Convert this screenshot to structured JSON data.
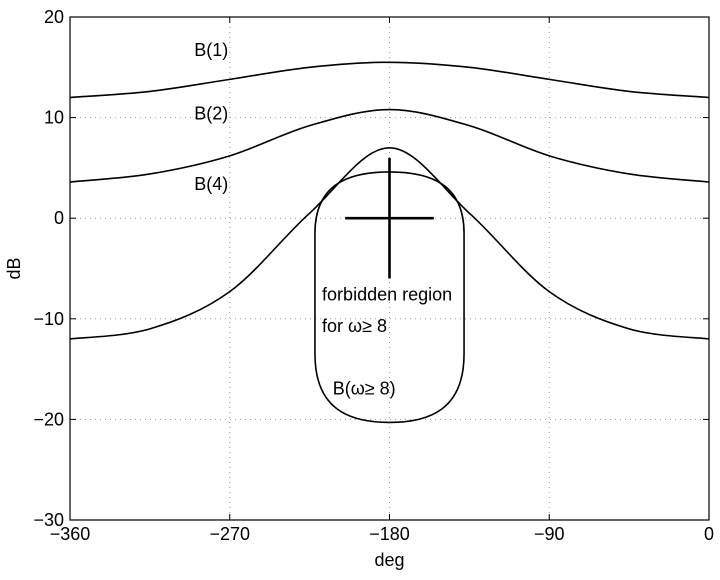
{
  "chart_data": {
    "type": "line",
    "title": "",
    "xlabel": "deg",
    "ylabel": "dB",
    "xlim": [
      -360,
      0
    ],
    "ylim": [
      -30,
      20
    ],
    "x_ticks": [
      -360,
      -270,
      -180,
      -90,
      0
    ],
    "x_tick_labels": [
      "−360",
      "−270",
      "−180",
      "−90",
      "0"
    ],
    "y_ticks": [
      -30,
      -20,
      -10,
      0,
      10,
      20
    ],
    "y_tick_labels": [
      "−30",
      "−20",
      "−10",
      "0",
      "10",
      "20"
    ],
    "grid": true,
    "series": [
      {
        "name": "B(1)",
        "x": [
          -360,
          -315,
          -270,
          -225,
          -180,
          -135,
          -90,
          -45,
          0
        ],
        "y": [
          12.0,
          12.6,
          13.8,
          15.0,
          15.5,
          15.0,
          13.8,
          12.6,
          12.0
        ]
      },
      {
        "name": "B(2)",
        "x": [
          -360,
          -315,
          -270,
          -225,
          -180,
          -135,
          -90,
          -45,
          0
        ],
        "y": [
          3.6,
          4.4,
          6.2,
          9.2,
          10.8,
          9.2,
          6.2,
          4.4,
          3.6
        ]
      },
      {
        "name": "B(4)",
        "x": [
          -360,
          -315,
          -270,
          -225,
          -180,
          -135,
          -90,
          -45,
          0
        ],
        "y": [
          -12.0,
          -11.0,
          -7.3,
          0.5,
          7.0,
          0.5,
          -7.3,
          -11.0,
          -12.0
        ]
      }
    ],
    "forbidden_region": {
      "label": "B(ω≥ 8)",
      "center_deg": -180,
      "half_width_deg": 42,
      "top_db": 4.6,
      "bottom_db": -20.3,
      "straight_top_db": -1.5,
      "straight_bottom_db": -13.5
    },
    "critical_point": {
      "x": -180,
      "y": 0,
      "h_range_deg": [
        -205,
        -155
      ],
      "v_range_db": [
        -6,
        6
      ]
    },
    "annotations": [
      {
        "text": "B(1)",
        "x": -290,
        "y": 16.1
      },
      {
        "text": "B(2)",
        "x": -290,
        "y": 9.8
      },
      {
        "text": "B(4)",
        "x": -290,
        "y": 2.8
      },
      {
        "text": "forbidden region",
        "x": -218,
        "y": -8.2
      },
      {
        "text": "for ω≥ 8",
        "x": -218,
        "y": -11.3
      },
      {
        "text": "B(ω≥ 8)",
        "x": -212,
        "y": -17.5
      }
    ]
  }
}
